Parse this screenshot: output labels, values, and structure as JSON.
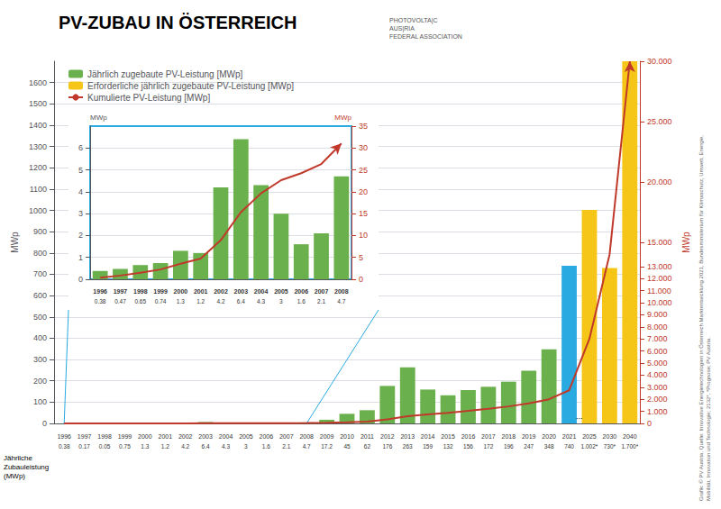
{
  "chart_data": [
    {
      "type": "bar",
      "title": "PV-ZUBAU IN ÖSTERREICH",
      "y_label": "MWp",
      "y2_label": "MWp",
      "categories": [
        1996,
        1997,
        1998,
        1999,
        2000,
        2001,
        2002,
        2003,
        2004,
        2005,
        2006,
        2007,
        2008,
        2009,
        2010,
        2011,
        2012,
        2013,
        2014,
        2015,
        2016,
        2017,
        2018,
        2019,
        2020,
        2021,
        2025,
        2030,
        2040
      ],
      "series": [
        {
          "name": "Jährlich zugebaute PV-Leistung [MWp]",
          "type": "bar",
          "color": "#6ab04c",
          "colors": [
            "#6ab04c",
            "#6ab04c",
            "#6ab04c",
            "#6ab04c",
            "#6ab04c",
            "#6ab04c",
            "#6ab04c",
            "#6ab04c",
            "#6ab04c",
            "#6ab04c",
            "#6ab04c",
            "#6ab04c",
            "#6ab04c",
            "#6ab04c",
            "#6ab04c",
            "#6ab04c",
            "#6ab04c",
            "#6ab04c",
            "#6ab04c",
            "#6ab04c",
            "#6ab04c",
            "#6ab04c",
            "#6ab04c",
            "#6ab04c",
            "#6ab04c",
            "#29abe2",
            null,
            null,
            null
          ],
          "values": [
            0.38,
            0.17,
            0.05,
            0.75,
            1.3,
            1.2,
            4.2,
            6.4,
            4.3,
            3,
            1.6,
            2.1,
            4.7,
            17.2,
            45,
            62,
            176,
            263,
            159,
            132,
            156,
            172,
            196,
            247,
            348,
            740,
            null,
            null,
            null
          ],
          "value_labels": [
            "0.38",
            "0.17",
            "0.05",
            "0.75",
            "1.3",
            "1.2",
            "4.2",
            "6.4",
            "4.3",
            "3",
            "1.6",
            "2.1",
            "4.7",
            "17.2",
            "45",
            "62",
            "176",
            "263",
            "159",
            "132",
            "156",
            "172",
            "196",
            "247",
            "348",
            "740",
            null,
            null,
            null
          ]
        },
        {
          "name": "Erforderliche jährlich zugebaute PV-Leistung [MWp]",
          "type": "bar",
          "color": "#f5c518",
          "values": [
            null,
            null,
            null,
            null,
            null,
            null,
            null,
            null,
            null,
            null,
            null,
            null,
            null,
            null,
            null,
            null,
            null,
            null,
            null,
            null,
            null,
            null,
            null,
            null,
            null,
            null,
            1002,
            730,
            1700
          ],
          "value_labels": [
            null,
            null,
            null,
            null,
            null,
            null,
            null,
            null,
            null,
            null,
            null,
            null,
            null,
            null,
            null,
            null,
            null,
            null,
            null,
            null,
            null,
            null,
            null,
            null,
            null,
            null,
            "1.002*",
            "730*",
            "1.700*"
          ]
        },
        {
          "name": "Kumulierte PV-Leistung [MWp]",
          "type": "line",
          "axis": "y2",
          "color": "#c0392b",
          "values": [
            0.38,
            0.55,
            0.6,
            1.35,
            2.65,
            3.85,
            8.05,
            14.45,
            18.75,
            21.75,
            23.35,
            25.45,
            30.15,
            47.35,
            92.35,
            154.35,
            330.35,
            593.35,
            752.35,
            884.35,
            1040.35,
            1212.35,
            1408.35,
            1655.35,
            2003.35,
            2743.35,
            7000,
            14000,
            30000
          ]
        }
      ],
      "ylim": [
        0,
        1700
      ],
      "yticks": [
        0,
        100,
        200,
        300,
        400,
        500,
        600,
        700,
        800,
        900,
        1000,
        1100,
        1200,
        1300,
        1400,
        1500,
        1600
      ],
      "y2lim": [
        0,
        30000
      ],
      "y2ticks": [
        0,
        {
          "value": 1000,
          "label": "1.000"
        },
        {
          "value": 2000,
          "label": "2.000"
        },
        {
          "value": 3000,
          "label": "3.000"
        },
        {
          "value": 4000,
          "label": "4.000"
        },
        {
          "value": 5000,
          "label": "5.000"
        },
        {
          "value": 6000,
          "label": "6.000"
        },
        {
          "value": 7000,
          "label": "7.000"
        },
        {
          "value": 8000,
          "label": "8.000"
        },
        {
          "value": 9000,
          "label": "9.000"
        },
        {
          "value": 10000,
          "label": "10.000"
        },
        {
          "value": 11000,
          "label": "11.000"
        },
        {
          "value": 12000,
          "label": "12.000"
        },
        {
          "value": 13000,
          "label": "13.000"
        },
        {
          "value": 15000,
          "label": "15.000"
        },
        {
          "value": 20000,
          "label": "20.000"
        },
        {
          "value": 25000,
          "label": "25.000"
        },
        {
          "value": 30000,
          "label": "30.000"
        }
      ],
      "grid": true,
      "legend": "upper left",
      "annotations": [
        "...",
        "Jährliche\nZubauleistung\n(MWp)",
        "PHOTOVOLTA|C\nAUS|RIA\nFEDERAL ASSOCIATION"
      ],
      "source": "Grafik: © PV Austria. Quelle: Innovative Energietechnologien in Österreich Marktentwicklung 2021, Bundesministerium für Klimaschutz, Umwelt, Energie,\nMobilität, Innovation und Technologie; 2132*, *Prognose; PV Austria."
    },
    {
      "type": "bar",
      "color": "#29abe2",
      "y_label": "MWp",
      "y2_label": "MWp",
      "categories": [
        1996,
        1997,
        1998,
        1999,
        2000,
        2001,
        2002,
        2003,
        2004,
        2005,
        2006,
        2007,
        2008
      ],
      "series": [
        {
          "type": "bar",
          "color": "#6ab04c",
          "values": [
            0.38,
            0.47,
            0.65,
            0.74,
            1.3,
            1.2,
            4.2,
            6.4,
            4.3,
            3,
            1.6,
            2.1,
            4.7
          ],
          "value_labels": [
            "0.38",
            "0.47",
            "0.65",
            "0.74",
            "1.3",
            "1.2",
            "4.2",
            "6.4",
            "4.3",
            "3",
            "1.6",
            "2.1",
            "4.7"
          ]
        },
        {
          "type": "line",
          "axis": "y2",
          "color": "#c0392b",
          "values": [
            0.38,
            0.85,
            1.5,
            2.24,
            3.54,
            4.74,
            8.94,
            15.34,
            19.64,
            22.64,
            24.24,
            26.34,
            31.04
          ]
        }
      ],
      "ylim": [
        0,
        7
      ],
      "yticks": [
        0,
        1,
        2,
        3,
        4,
        5,
        6
      ],
      "y2lim": [
        0,
        35
      ],
      "y2ticks": [
        0,
        5,
        10,
        15,
        20,
        25,
        30,
        35
      ],
      "grid": true
    }
  ]
}
